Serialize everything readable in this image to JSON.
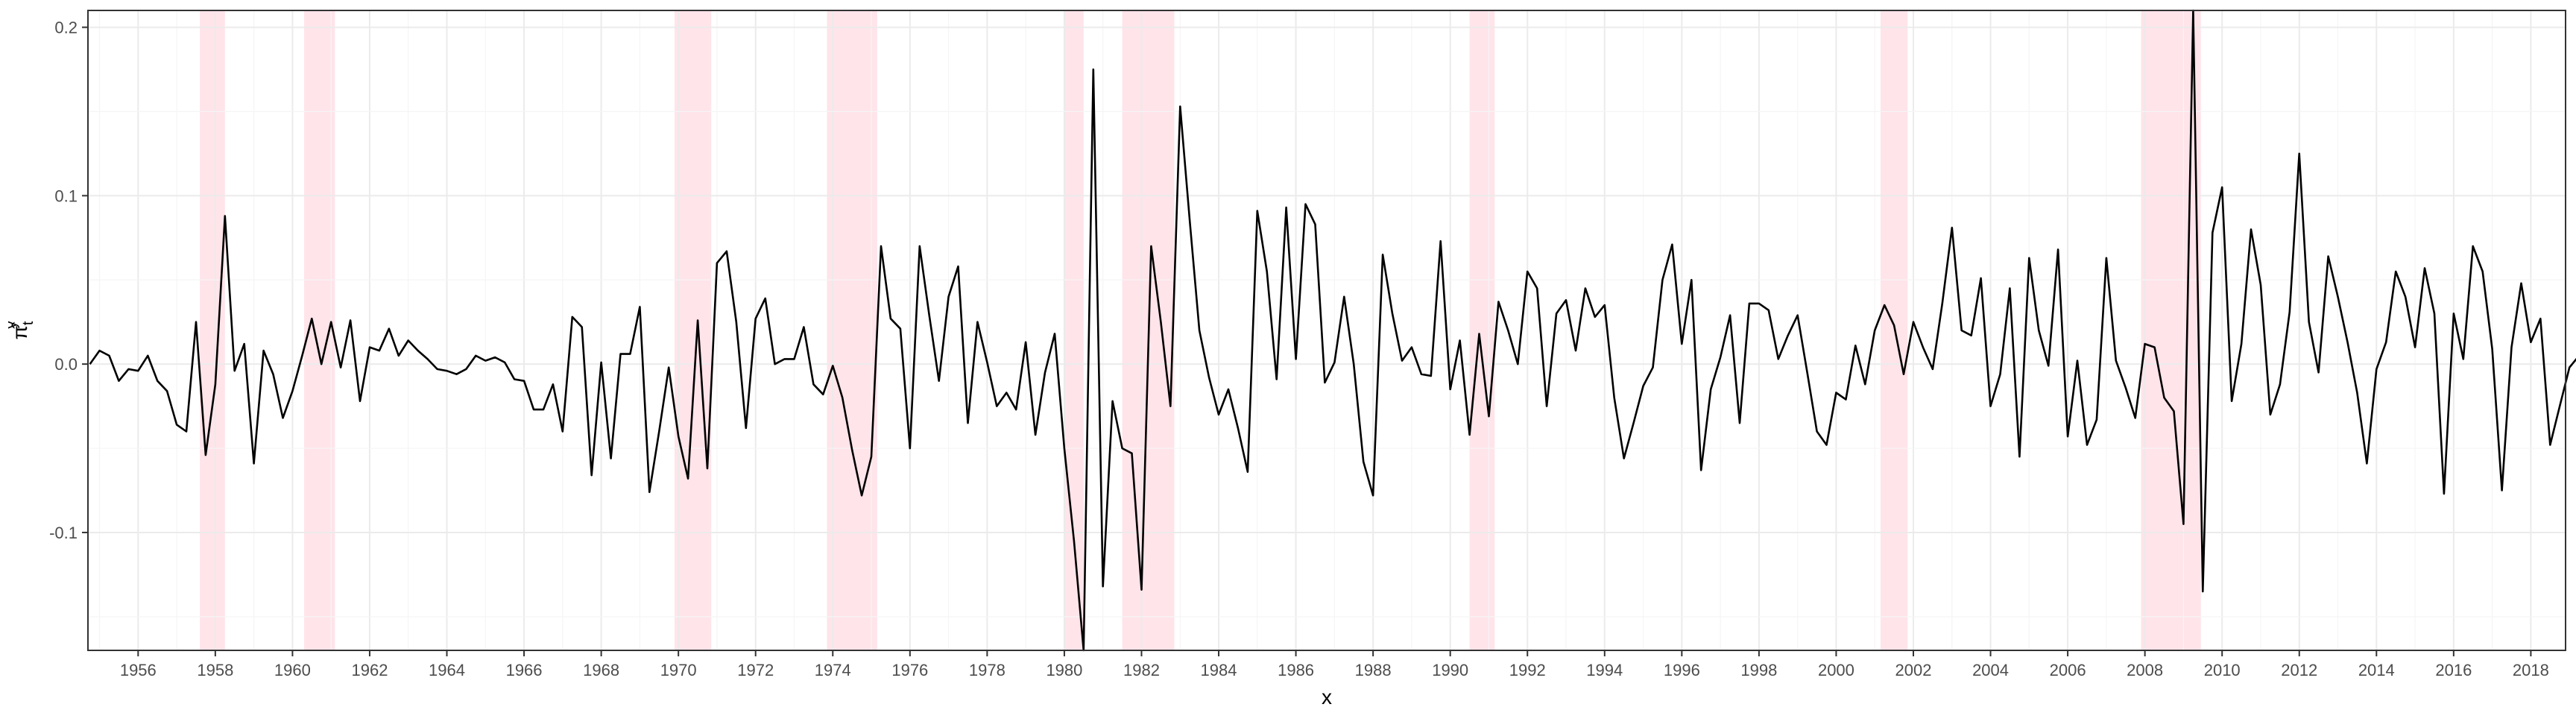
{
  "chart_data": {
    "type": "line",
    "title": "",
    "xlabel": "x",
    "ylabel": "π̂",
    "ylabel_superscript": "y",
    "ylabel_subscript": "t",
    "xlim": [
      1954.7,
      2018.9
    ],
    "ylim": [
      -0.17,
      0.21
    ],
    "x_ticks": [
      1956,
      1958,
      1960,
      1962,
      1964,
      1966,
      1968,
      1970,
      1972,
      1974,
      1976,
      1978,
      1980,
      1982,
      1984,
      1986,
      1988,
      1990,
      1992,
      1994,
      1996,
      1998,
      2000,
      2002,
      2004,
      2006,
      2008,
      2010,
      2012,
      2014,
      2016,
      2018
    ],
    "y_ticks": [
      -0.1,
      0.0,
      0.1,
      0.2
    ],
    "y_tick_labels": [
      "-0.1",
      "0.0",
      "0.1",
      "0.2"
    ],
    "grid": true,
    "recessions": [
      [
        1957.6,
        1958.25
      ],
      [
        1960.3,
        1961.1
      ],
      [
        1969.9,
        1970.85
      ],
      [
        1973.85,
        1975.15
      ],
      [
        1980.0,
        1980.5
      ],
      [
        1981.5,
        1982.85
      ],
      [
        1990.5,
        1991.15
      ],
      [
        2001.15,
        2001.85
      ],
      [
        2007.9,
        2009.45
      ]
    ],
    "colors": {
      "line": "#000000",
      "recession": "#ffe4ea"
    },
    "series": [
      {
        "x_start": 1954.75,
        "step": 0.25,
        "values": [
          0.0,
          0.008,
          0.005,
          -0.01,
          -0.003,
          -0.004,
          0.005,
          -0.01,
          -0.016,
          -0.036,
          -0.04,
          0.025,
          -0.054,
          -0.012,
          0.088,
          -0.004,
          0.012,
          -0.059,
          0.008,
          -0.006,
          -0.032,
          -0.016,
          0.005,
          0.027,
          0.0,
          0.025,
          -0.002,
          0.026,
          -0.022,
          0.01,
          0.008,
          0.021,
          0.005,
          0.014,
          0.008,
          0.003,
          -0.003,
          -0.004,
          -0.006,
          -0.003,
          0.005,
          0.002,
          0.004,
          0.001,
          -0.009,
          -0.01,
          -0.027,
          -0.027,
          -0.012,
          -0.04,
          0.028,
          0.022,
          -0.066,
          0.001,
          -0.056,
          0.006,
          0.006,
          0.034,
          -0.076,
          -0.04,
          -0.002,
          -0.043,
          -0.068,
          0.026,
          -0.062,
          0.06,
          0.067,
          0.025,
          -0.038,
          0.027,
          0.039,
          0.0,
          0.003,
          0.003,
          0.022,
          -0.012,
          -0.018,
          -0.001,
          -0.02,
          -0.051,
          -0.078,
          -0.055,
          0.07,
          0.027,
          0.021,
          -0.05,
          0.07,
          0.029,
          -0.01,
          0.04,
          0.058,
          -0.035,
          0.025,
          0.001,
          -0.025,
          -0.017,
          -0.027,
          0.013,
          -0.042,
          -0.005,
          0.018,
          -0.05,
          -0.105,
          -0.17,
          0.175,
          -0.132,
          -0.022,
          -0.05,
          -0.053,
          -0.134,
          0.07,
          0.025,
          -0.025,
          0.153,
          0.085,
          0.02,
          -0.008,
          -0.03,
          -0.015,
          -0.038,
          -0.064,
          0.091,
          0.055,
          -0.009,
          0.093,
          0.003,
          0.095,
          0.083,
          -0.011,
          0.001,
          0.04,
          0.0,
          -0.058,
          -0.078,
          0.065,
          0.03,
          0.002,
          0.01,
          -0.006,
          -0.007,
          0.073,
          -0.015,
          0.014,
          -0.042,
          0.018,
          -0.031,
          0.037,
          0.02,
          0.0,
          0.055,
          0.045,
          -0.025,
          0.03,
          0.038,
          0.008,
          0.045,
          0.028,
          0.035,
          -0.02,
          -0.056,
          -0.035,
          -0.013,
          -0.002,
          0.05,
          0.071,
          0.012,
          0.05,
          -0.063,
          -0.015,
          0.004,
          0.029,
          -0.035,
          0.036,
          0.036,
          0.032,
          0.003,
          0.017,
          0.029,
          -0.005,
          -0.04,
          -0.048,
          -0.017,
          -0.021,
          0.011,
          -0.012,
          0.02,
          0.035,
          0.023,
          -0.006,
          0.025,
          0.01,
          -0.003,
          0.036,
          0.081,
          0.02,
          0.017,
          0.051,
          -0.025,
          -0.006,
          0.045,
          -0.055,
          0.063,
          0.02,
          -0.001,
          0.068,
          -0.043,
          0.002,
          -0.048,
          -0.033,
          0.063,
          0.002,
          -0.014,
          -0.032,
          0.012,
          0.01,
          -0.02,
          -0.028,
          -0.095,
          0.21,
          -0.135,
          0.078,
          0.105,
          -0.022,
          0.012,
          0.08,
          0.047,
          -0.03,
          -0.012,
          0.031,
          0.125,
          0.025,
          -0.005,
          0.064,
          0.04,
          0.013,
          -0.017,
          -0.059,
          -0.003,
          0.013,
          0.055,
          0.04,
          0.01,
          0.057,
          0.03,
          -0.077,
          0.03,
          0.003,
          0.07,
          0.055,
          0.009,
          -0.075,
          0.01,
          0.048,
          0.013,
          0.027,
          -0.048,
          -0.025,
          -0.002,
          0.005
        ]
      }
    ]
  }
}
